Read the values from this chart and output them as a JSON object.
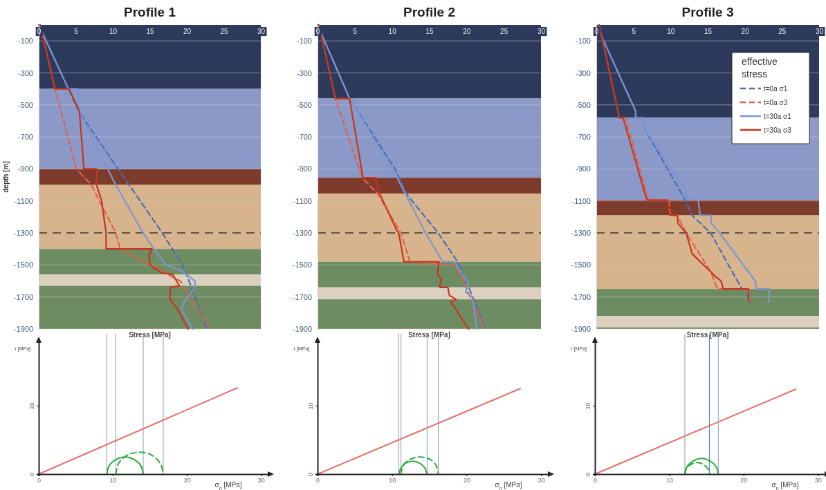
{
  "chart_data": [
    {
      "type": "line",
      "title": "Profile 1",
      "xlabel": "Stress [MPa]",
      "ylabel": "depth [m]",
      "xlim": [
        0,
        30
      ],
      "ylim": [
        -1900,
        0
      ],
      "xticks": [
        0,
        5,
        10,
        15,
        20,
        25,
        30
      ],
      "yticks": [
        -100,
        -300,
        -500,
        -700,
        -900,
        -1100,
        -1300,
        -1500,
        -1700,
        -1900
      ],
      "grid": "y",
      "bands": [
        {
          "axis": "y",
          "from": 0,
          "to": -400,
          "color": "#2e3a5c"
        },
        {
          "axis": "y",
          "from": -400,
          "to": -900,
          "color": "#8a99c8"
        },
        {
          "axis": "y",
          "from": -900,
          "to": -1000,
          "color": "#7e3b2b"
        },
        {
          "axis": "y",
          "from": -1000,
          "to": -1400,
          "color": "#d8b48c"
        },
        {
          "axis": "y",
          "from": -1400,
          "to": -1560,
          "color": "#6e8c62"
        },
        {
          "axis": "y",
          "from": -1560,
          "to": -1630,
          "color": "#ddd0bf"
        },
        {
          "axis": "y",
          "from": -1630,
          "to": -1900,
          "color": "#6e8c62"
        }
      ],
      "ref_lines": [
        {
          "axis": "y",
          "value": -1300,
          "color": "#333333",
          "line_style": "dashed"
        }
      ],
      "series": [
        {
          "color": "#4a6fb5",
          "line_style": "dashed",
          "x": [
            0,
            4.0,
            5.4,
            10.7,
            16.7,
            19.4,
            20.3,
            22.7
          ],
          "values": [
            0,
            -400,
            -540,
            -900,
            -1300,
            -1500,
            -1600,
            -1890
          ]
        },
        {
          "color": "#e0604a",
          "line_style": "dashed",
          "x": [
            0.2,
            2.2,
            5.1,
            7.1,
            10.4,
            11.0,
            19.1,
            23.0
          ],
          "values": [
            0,
            -400,
            -900,
            -1000,
            -1300,
            -1400,
            -1600,
            -1890
          ]
        },
        {
          "color": "#7b96d4",
          "line_style": "solid",
          "x": [
            0,
            4.0,
            5.3,
            5.4,
            10.4,
            14.1,
            15.7,
            17.2,
            19.4,
            21.1,
            21.1,
            19.4,
            19.4,
            20.8
          ],
          "values": [
            0,
            -400,
            -400,
            -540,
            -1000,
            -1300,
            -1410,
            -1500,
            -1540,
            -1600,
            -1640,
            -1750,
            -1790,
            -1900
          ]
        },
        {
          "color": "#c8341c",
          "line_style": "solid",
          "x": [
            0.2,
            2.2,
            4.1,
            5.5,
            6.1,
            7.8,
            7.8,
            8.5,
            9.1,
            9.1,
            15.3,
            14.9,
            15.0,
            16.6,
            18.1,
            19.0,
            17.8,
            17.7,
            18.8,
            20.2
          ],
          "values": [
            0,
            -400,
            -400,
            -540,
            -900,
            -900,
            -1000,
            -1100,
            -1300,
            -1400,
            -1400,
            -1440,
            -1500,
            -1550,
            -1560,
            -1630,
            -1640,
            -1710,
            -1780,
            -1900
          ]
        }
      ]
    },
    {
      "type": "line",
      "title": "Profile 2",
      "xlabel": "Stress [MPa]",
      "xlim": [
        0,
        30
      ],
      "ylim": [
        -1900,
        0
      ],
      "xticks": [
        0,
        5,
        10,
        15,
        20,
        25,
        30
      ],
      "yticks": [
        -100,
        -300,
        -500,
        -700,
        -900,
        -1100,
        -1300,
        -1500,
        -1700,
        -1900
      ],
      "grid": "y",
      "bands": [
        {
          "axis": "y",
          "from": 0,
          "to": -460,
          "color": "#2e3a5c"
        },
        {
          "axis": "y",
          "from": -460,
          "to": -955,
          "color": "#8a99c8"
        },
        {
          "axis": "y",
          "from": -955,
          "to": -1055,
          "color": "#7e3b2b"
        },
        {
          "axis": "y",
          "from": -1055,
          "to": -1480,
          "color": "#d8b48c"
        },
        {
          "axis": "y",
          "from": -1480,
          "to": -1640,
          "color": "#6e8c62"
        },
        {
          "axis": "y",
          "from": -1640,
          "to": -1715,
          "color": "#ddd0bf"
        },
        {
          "axis": "y",
          "from": -1715,
          "to": -1900,
          "color": "#6e8c62"
        }
      ],
      "ref_lines": [
        {
          "axis": "y",
          "value": -1300,
          "color": "#333333",
          "line_style": "dashed"
        }
      ],
      "series": [
        {
          "color": "#4a6fb5",
          "line_style": "dashed",
          "x": [
            0,
            4.3,
            10.4,
            12.0,
            16.2,
            18.8,
            20.4,
            22.5
          ],
          "values": [
            0,
            -460,
            -900,
            -1060,
            -1300,
            -1480,
            -1650,
            -1890
          ]
        },
        {
          "color": "#e0604a",
          "line_style": "dashed",
          "x": [
            0.2,
            2.4,
            6.0,
            8.0,
            11.2,
            12.4,
            18.5,
            22.4
          ],
          "values": [
            0,
            -460,
            -955,
            -1050,
            -1300,
            -1480,
            -1500,
            -1890
          ]
        },
        {
          "color": "#7b96d4",
          "line_style": "solid",
          "x": [
            0,
            4.3,
            10.7,
            14.5,
            16.8,
            18.3,
            20.2,
            19.9,
            20.8,
            21.4
          ],
          "values": [
            0,
            -460,
            -955,
            -1300,
            -1480,
            -1480,
            -1610,
            -1670,
            -1700,
            -1900
          ]
        },
        {
          "color": "#c8341c",
          "line_style": "solid",
          "x": [
            0.2,
            2.4,
            4.3,
            6.1,
            7.8,
            8.2,
            10.6,
            10.9,
            11.6,
            16.3,
            16.1,
            16.6,
            16.4,
            17.5,
            17.7,
            18.6,
            17.9,
            20.3
          ],
          "values": [
            0,
            -460,
            -460,
            -955,
            -955,
            -1040,
            -1280,
            -1300,
            -1480,
            -1480,
            -1560,
            -1590,
            -1640,
            -1640,
            -1690,
            -1715,
            -1730,
            -1900
          ]
        }
      ]
    },
    {
      "type": "line",
      "title": "Profile 3",
      "xlabel": "Stress [MPa]",
      "xlim": [
        0,
        30
      ],
      "ylim": [
        -1900,
        0
      ],
      "xticks": [
        0,
        5,
        10,
        15,
        20,
        25,
        30
      ],
      "yticks": [
        -100,
        -300,
        -500,
        -700,
        -900,
        -1100,
        -1300,
        -1500,
        -1700,
        -1900
      ],
      "grid": "y",
      "legend": "top right",
      "legend_title": "effective stress",
      "bands": [
        {
          "axis": "y",
          "from": 0,
          "to": -580,
          "color": "#2e3a5c"
        },
        {
          "axis": "y",
          "from": -580,
          "to": -1095,
          "color": "#8a99c8"
        },
        {
          "axis": "y",
          "from": -1095,
          "to": -1190,
          "color": "#7e3b2b"
        },
        {
          "axis": "y",
          "from": -1190,
          "to": -1650,
          "color": "#d8b48c"
        },
        {
          "axis": "y",
          "from": -1650,
          "to": -1820,
          "color": "#6e8c62"
        },
        {
          "axis": "y",
          "from": -1820,
          "to": -1890,
          "color": "#ddd0bf"
        },
        {
          "axis": "y",
          "from": -1890,
          "to": -1900,
          "color": "#6e8c62"
        }
      ],
      "ref_lines": [
        {
          "axis": "y",
          "value": -1300,
          "color": "#333333",
          "line_style": "dashed"
        }
      ],
      "series": [
        {
          "name": "t=0a σ1",
          "color": "#4a6fb5",
          "line_style": "dashed",
          "x": [
            0.4,
            0.6,
            5.3,
            5.3,
            6.3,
            6.4,
            11.8,
            12.0,
            12.9,
            15.4,
            19.6,
            20.0,
            20.8
          ],
          "values": [
            0,
            -60,
            -540,
            -580,
            -580,
            -640,
            -1080,
            -1095,
            -1190,
            -1300,
            -1650,
            -1650,
            -1740
          ]
        },
        {
          "name": "t=0a σ3",
          "color": "#e0604a",
          "line_style": "dashed",
          "x": [
            0.4,
            3.1,
            3.9,
            7.0,
            9.8,
            10.0,
            10.9,
            12.1,
            15.5,
            16.3,
            20.3,
            20.6
          ],
          "values": [
            0,
            -580,
            -580,
            -1090,
            -1095,
            -1190,
            -1190,
            -1300,
            -1550,
            -1650,
            -1650,
            -1730
          ]
        },
        {
          "name": "t=30a σ1",
          "color": "#7b96d4",
          "line_style": "solid",
          "x": [
            0.4,
            0.6,
            5.3,
            5.3,
            6.3,
            6.4,
            12.1,
            12.1,
            13.7,
            14.0,
            15.4,
            15.5,
            16.6,
            21.4,
            21.6,
            23.3,
            23.2
          ],
          "values": [
            0,
            -60,
            -540,
            -580,
            -580,
            -640,
            -1040,
            -1090,
            -1090,
            -1190,
            -1190,
            -1240,
            -1300,
            -1600,
            -1650,
            -1650,
            -1730
          ]
        },
        {
          "name": "t=30a σ3",
          "color": "#c8341c",
          "line_style": "solid",
          "x": [
            0.4,
            3.1,
            3.6,
            6.7,
            6.9,
            9.6,
            9.9,
            10.9,
            11.0,
            12.1,
            12.9,
            16.0,
            16.8,
            17.1,
            20.5,
            20.5
          ],
          "values": [
            0,
            -580,
            -580,
            -1080,
            -1095,
            -1095,
            -1190,
            -1190,
            -1240,
            -1300,
            -1430,
            -1570,
            -1600,
            -1650,
            -1650,
            -1730
          ]
        }
      ]
    },
    {
      "type": "line",
      "xlabel": "σ$_{n}$ [MPa]",
      "ylabel": "τ [MPa]",
      "xlim": [
        0,
        31
      ],
      "ylim": [
        0,
        19.5
      ],
      "xticks": [
        0,
        10,
        20,
        30
      ],
      "yticks": [
        0,
        10
      ],
      "ref_lines": [
        {
          "axis": "x",
          "value": 9.2,
          "color": "#7f9fb0"
        },
        {
          "axis": "x",
          "value": 10.4,
          "color": "#7f9fb0"
        },
        {
          "axis": "x",
          "value": 14.1,
          "color": "#7f9fb0"
        },
        {
          "axis": "x",
          "value": 16.8,
          "color": "#7f9fb0"
        }
      ],
      "series": [
        {
          "color": "#e8706a",
          "line_style": "solid",
          "x": [
            0,
            26.8
          ],
          "values": [
            0,
            12.6
          ]
        },
        {
          "color": "#2eaa3c",
          "line_style": "solid",
          "x": [
            9.2,
            9.5,
            10.4,
            11.7,
            12.9,
            13.8,
            14.1
          ],
          "values": [
            0,
            1.2,
            2.1,
            2.5,
            2.1,
            1.2,
            0
          ]
        },
        {
          "color": "#2eaa3c",
          "line_style": "dashed",
          "x": [
            10.4,
            10.8,
            12.0,
            13.6,
            15.2,
            16.4,
            16.8
          ],
          "values": [
            0,
            1.6,
            2.8,
            3.2,
            2.8,
            1.6,
            0
          ]
        }
      ]
    },
    {
      "type": "line",
      "xlabel": "σ$_{n}$ [MPa]",
      "ylabel": "τ [MPa]",
      "xlim": [
        0,
        31
      ],
      "ylim": [
        0,
        19.5
      ],
      "xticks": [
        0,
        10,
        20,
        30
      ],
      "yticks": [
        0,
        10
      ],
      "ref_lines": [
        {
          "axis": "x",
          "value": 10.9,
          "color": "#7f9fb0"
        },
        {
          "axis": "x",
          "value": 11.2,
          "color": "#7f9fb0"
        },
        {
          "axis": "x",
          "value": 14.7,
          "color": "#7f9fb0"
        },
        {
          "axis": "x",
          "value": 16.2,
          "color": "#7f9fb0"
        }
      ],
      "series": [
        {
          "color": "#e8706a",
          "line_style": "solid",
          "x": [
            0,
            27.2
          ],
          "values": [
            0,
            12.5
          ]
        },
        {
          "color": "#2eaa3c",
          "line_style": "solid",
          "x": [
            10.9,
            11.2,
            11.8,
            12.8,
            13.7,
            14.4,
            14.7
          ],
          "values": [
            0,
            0.9,
            1.6,
            1.9,
            1.6,
            0.9,
            0
          ]
        },
        {
          "color": "#2eaa3c",
          "line_style": "dashed",
          "x": [
            11.2,
            11.5,
            12.5,
            13.7,
            15.0,
            15.9,
            16.2
          ],
          "values": [
            0,
            1.3,
            2.2,
            2.5,
            2.2,
            1.3,
            0
          ]
        }
      ]
    },
    {
      "type": "line",
      "xlabel": "σ$_{n}$ [MPa]",
      "ylabel": "τ [MPa]",
      "xlim": [
        0,
        31
      ],
      "ylim": [
        0,
        19.5
      ],
      "xticks": [
        0,
        10,
        20,
        30
      ],
      "yticks": [
        0,
        10
      ],
      "ref_lines": [
        {
          "axis": "x",
          "value": 12.1,
          "color": "#7f9fb0"
        },
        {
          "axis": "x",
          "value": 15.4,
          "color": "#3f7fa8"
        },
        {
          "axis": "x",
          "value": 16.6,
          "color": "#7f9fb0"
        }
      ],
      "series": [
        {
          "color": "#e8706a",
          "line_style": "solid",
          "x": [
            0,
            27.0
          ],
          "values": [
            0,
            12.4
          ]
        },
        {
          "color": "#2eaa3c",
          "line_style": "solid",
          "x": [
            12.1,
            12.4,
            13.2,
            14.4,
            15.5,
            16.3,
            16.6
          ],
          "values": [
            0,
            1.1,
            1.9,
            2.3,
            1.9,
            1.1,
            0
          ]
        },
        {
          "color": "#2eaa3c",
          "line_style": "dashed",
          "x": [
            12.1,
            12.3,
            12.9,
            13.8,
            14.6,
            15.2,
            15.4
          ],
          "values": [
            0,
            0.8,
            1.4,
            1.7,
            1.4,
            0.8,
            0
          ]
        }
      ]
    }
  ]
}
